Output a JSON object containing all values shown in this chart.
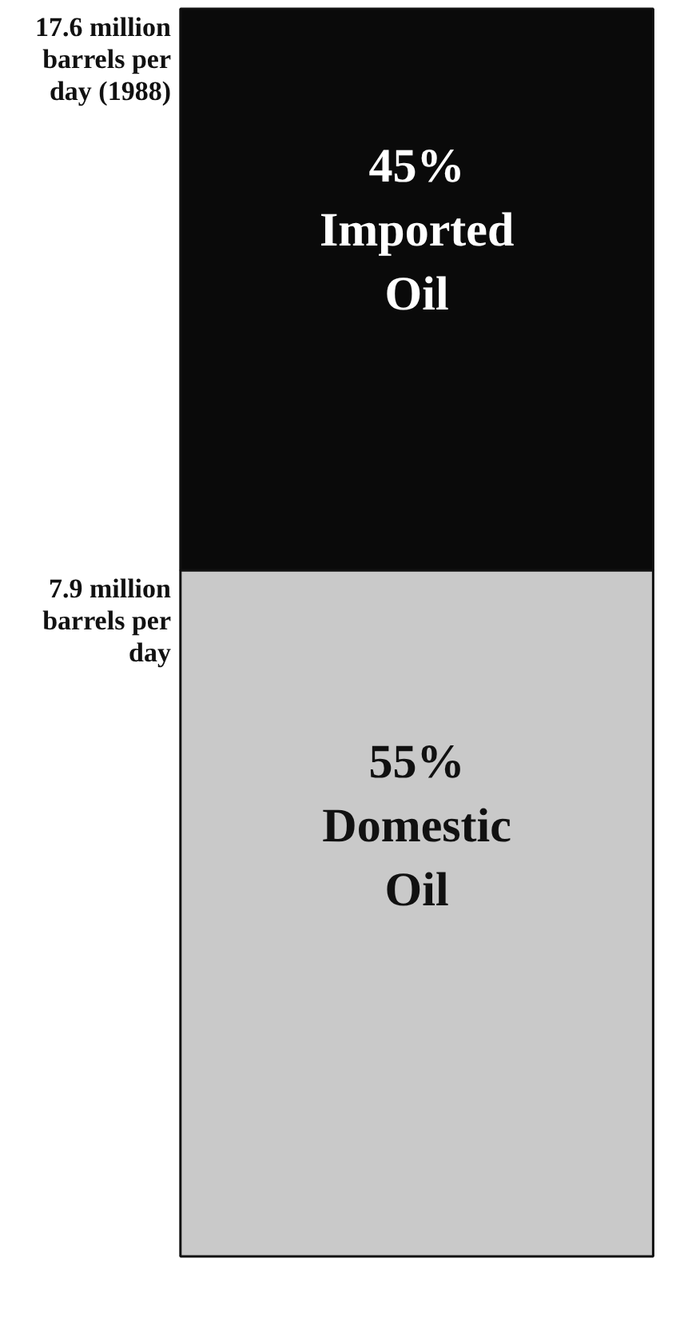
{
  "chart_data": {
    "type": "bar",
    "stacked": true,
    "tick_labels": false,
    "categories": [
      null
    ],
    "series": [
      {
        "name": "Domestic Oil",
        "color": "#c9c9c9",
        "values": [
          55
        ],
        "value_labels": [
          "55%"
        ]
      },
      {
        "name": "Imported Oil",
        "color": "#0a0a0a",
        "values": [
          45
        ],
        "value_labels": [
          "45%"
        ]
      }
    ],
    "annotations": [
      "17.6 million barrels per day (1988)",
      "7.9 million barrels per day"
    ]
  }
}
